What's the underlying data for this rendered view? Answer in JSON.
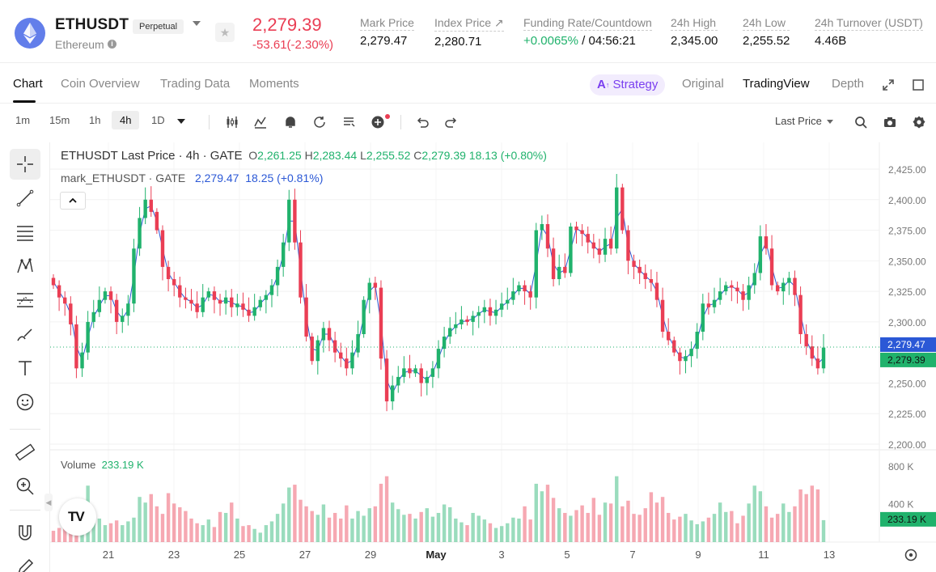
{
  "header": {
    "symbol": "ETHUSDT",
    "contract_type": "Perpetual",
    "coin_name": "Ethereum",
    "last_price": "2,279.39",
    "change": "-53.61(-2.30%)",
    "stats": [
      {
        "label": "Mark Price",
        "value": "2,279.47"
      },
      {
        "label": "Index Price ↗",
        "value": "2,280.71"
      },
      {
        "label": "Funding Rate/Countdown",
        "value_green": "+0.0065%",
        "value": " / 04:56:21"
      },
      {
        "label": "24h High",
        "value": "2,345.00"
      },
      {
        "label": "24h Low",
        "value": "2,255.52"
      },
      {
        "label": "24h Turnover (USDT)",
        "value": "4.46B"
      }
    ],
    "colors": {
      "down": "#ea3e54",
      "up": "#20b26c",
      "eth": "#627eea"
    }
  },
  "tabs": {
    "items": [
      "Chart",
      "Coin Overview",
      "Trading Data",
      "Moments"
    ],
    "active": "Chart",
    "strategy_label": "Strategy",
    "views": [
      "Original",
      "TradingView",
      "Depth"
    ],
    "active_view": "TradingView"
  },
  "toolbar": {
    "timeframes": [
      "1m",
      "15m",
      "1h",
      "4h",
      "1D"
    ],
    "active_timeframe": "4h",
    "price_type": "Last Price",
    "icons": [
      "indicators-icon",
      "chart-type-icon",
      "alert-icon",
      "replay-icon",
      "templates-icon",
      "add-indicator-icon",
      "undo-icon",
      "redo-icon",
      "search-icon",
      "camera-icon",
      "settings-icon"
    ]
  },
  "side_tools": [
    "crosshair-icon",
    "trendline-icon",
    "fib-icon",
    "pattern-icon",
    "projection-icon",
    "brush-icon",
    "text-icon",
    "emoji-icon",
    "ruler-icon",
    "zoom-in-icon",
    "magnet-icon",
    "pencil-icon"
  ],
  "legend": {
    "line1_title": "ETHUSDT Last Price · 4h · GATE",
    "o_label": "O",
    "o": "2,261.25",
    "h_label": "H",
    "h": "2,283.44",
    "l_label": "L",
    "l": "2,255.52",
    "c_label": "C",
    "c": "2,279.39",
    "chg": "18.13 (+0.80%)",
    "line2_title": "mark_ETHUSDT · GATE",
    "mark_value": "2,279.47",
    "mark_chg": "18.25 (+0.81%)",
    "volume_label": "Volume",
    "volume_value": "233.19 K"
  },
  "chart_data": {
    "type": "candlestick",
    "price_axis": [
      "2,425.00",
      "2,400.00",
      "2,375.00",
      "2,350.00",
      "2,325.00",
      "2,300.00",
      "2,250.00",
      "2,225.00",
      "2,200.00"
    ],
    "price_ticks": [
      2425,
      2400,
      2375,
      2350,
      2325,
      2300,
      2250,
      2225,
      2200
    ],
    "ylim": [
      2200,
      2425
    ],
    "volume_axis": [
      "800 K",
      "400 K"
    ],
    "volume_ticks": [
      800,
      400
    ],
    "x_labels": [
      "21",
      "23",
      "25",
      "27",
      "29",
      "May",
      "3",
      "5",
      "7",
      "9",
      "11",
      "13"
    ],
    "last_price_tag": "2,279.39",
    "mark_price_tag": "2,279.47",
    "last_price": 2279.39,
    "mark_price": 2279.47,
    "volume_tag": "233.19 K",
    "volume_last": 233.19,
    "closes": [
      2330,
      2320,
      2315,
      2298,
      2262,
      2275,
      2300,
      2308,
      2318,
      2325,
      2318,
      2300,
      2305,
      2315,
      2360,
      2385,
      2400,
      2390,
      2375,
      2345,
      2335,
      2330,
      2320,
      2318,
      2315,
      2308,
      2320,
      2325,
      2318,
      2315,
      2320,
      2312,
      2315,
      2310,
      2305,
      2312,
      2318,
      2322,
      2330,
      2345,
      2365,
      2400,
      2365,
      2320,
      2288,
      2268,
      2285,
      2295,
      2285,
      2275,
      2270,
      2262,
      2275,
      2290,
      2318,
      2332,
      2328,
      2270,
      2235,
      2248,
      2255,
      2262,
      2258,
      2262,
      2250,
      2255,
      2262,
      2278,
      2288,
      2295,
      2298,
      2302,
      2300,
      2305,
      2308,
      2312,
      2305,
      2310,
      2315,
      2318,
      2325,
      2330,
      2325,
      2320,
      2375,
      2380,
      2360,
      2335,
      2345,
      2340,
      2378,
      2375,
      2372,
      2365,
      2360,
      2355,
      2368,
      2360,
      2410,
      2375,
      2350,
      2345,
      2340,
      2335,
      2332,
      2318,
      2292,
      2285,
      2275,
      2268,
      2272,
      2278,
      2292,
      2315,
      2312,
      2318,
      2325,
      2330,
      2328,
      2325,
      2318,
      2330,
      2340,
      2370,
      2360,
      2330,
      2325,
      2332,
      2336,
      2322,
      2290,
      2280,
      2270,
      2262,
      2279
    ],
    "volumes": [
      120,
      150,
      200,
      180,
      420,
      350,
      600,
      300,
      250,
      180,
      200,
      230,
      180,
      220,
      260,
      480,
      420,
      510,
      380,
      300,
      520,
      410,
      370,
      330,
      250,
      200,
      180,
      240,
      160,
      320,
      310,
      420,
      250,
      170,
      180,
      140,
      100,
      180,
      220,
      300,
      410,
      580,
      610,
      450,
      380,
      330,
      290,
      400,
      260,
      310,
      250,
      390,
      250,
      330,
      280,
      360,
      380,
      620,
      700,
      420,
      350,
      290,
      300,
      250,
      320,
      360,
      270,
      310,
      400,
      370,
      250,
      210,
      180,
      310,
      280,
      240,
      200,
      150,
      170,
      200,
      260,
      250,
      380,
      240,
      620,
      540,
      610,
      470,
      360,
      310,
      280,
      340,
      390,
      310,
      470,
      290,
      420,
      410,
      700,
      380,
      440,
      300,
      290,
      360,
      530,
      420,
      480,
      310,
      240,
      270,
      300,
      230,
      190,
      220,
      260,
      300,
      420,
      320,
      330,
      200,
      280,
      410,
      600,
      540,
      380,
      260,
      300,
      410,
      320,
      380,
      560,
      510,
      600,
      560,
      233
    ]
  }
}
